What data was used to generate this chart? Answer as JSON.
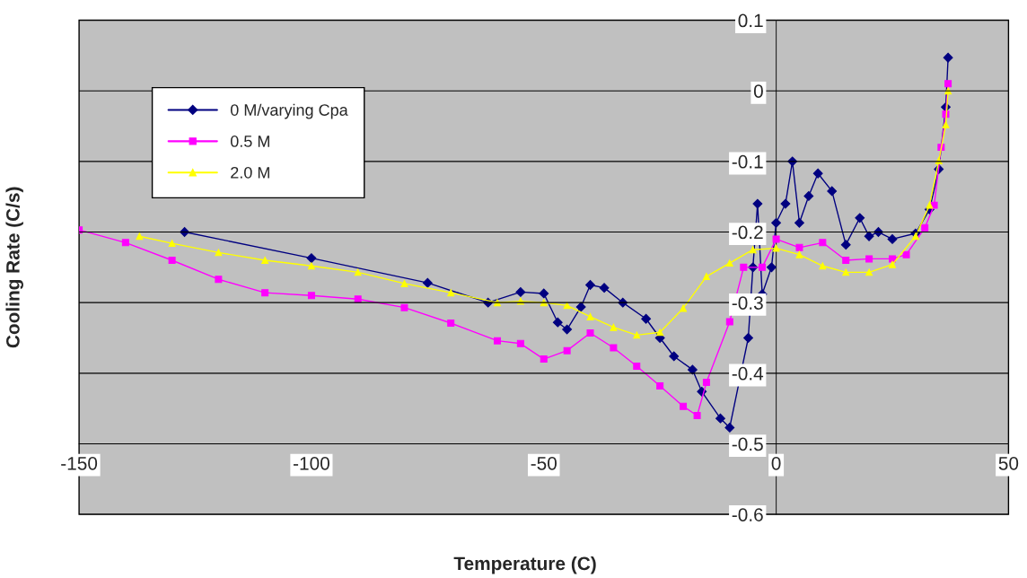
{
  "chart_data": {
    "type": "line",
    "xlabel": "Temperature (C)",
    "ylabel": "Cooling Rate (C/s)",
    "xlim": [
      -150,
      50
    ],
    "xticks": [
      -150,
      -100,
      -50,
      0,
      50
    ],
    "ylim": [
      -0.6,
      0.1
    ],
    "yticks": [
      -0.6,
      -0.5,
      -0.4,
      -0.3,
      -0.2,
      -0.1,
      0,
      0.1
    ],
    "grid": "y",
    "legend": "top left",
    "line_style": "solid",
    "series": [
      {
        "name": "0 M/varying Cpa",
        "color": "#000080",
        "marker": "diamond",
        "x": [
          -127.3,
          -100,
          -75,
          -62,
          -55,
          -50,
          -47,
          -45,
          -42,
          -40,
          -37,
          -33,
          -28,
          -25,
          -22,
          -18,
          -16,
          -12,
          -10,
          -6,
          -5,
          -4,
          -3,
          -1,
          0,
          2,
          3.5,
          5,
          7,
          9,
          12,
          15,
          18,
          20,
          22,
          25,
          30,
          33,
          35,
          36.5,
          37
        ],
        "values": [
          -0.2,
          -0.237,
          -0.272,
          -0.3,
          -0.285,
          -0.287,
          -0.328,
          -0.338,
          -0.306,
          -0.275,
          -0.279,
          -0.3,
          -0.323,
          -0.35,
          -0.376,
          -0.395,
          -0.426,
          -0.464,
          -0.477,
          -0.35,
          -0.25,
          -0.16,
          -0.288,
          -0.25,
          -0.187,
          -0.16,
          -0.1,
          -0.187,
          -0.149,
          -0.117,
          -0.142,
          -0.218,
          -0.18,
          -0.206,
          -0.2,
          -0.21,
          -0.202,
          -0.168,
          -0.111,
          -0.023,
          0.047
        ]
      },
      {
        "name": "0.5 M",
        "color": "#ff00ff",
        "marker": "square",
        "x": [
          -150,
          -140,
          -130,
          -120,
          -110,
          -100,
          -90,
          -80,
          -70,
          -60,
          -55,
          -50,
          -45,
          -40,
          -35,
          -30,
          -25,
          -20,
          -17,
          -15,
          -10,
          -7,
          -3,
          0,
          5,
          10,
          15,
          20,
          25,
          28,
          32,
          34,
          35.5,
          36.5,
          37
        ],
        "values": [
          -0.197,
          -0.215,
          -0.24,
          -0.267,
          -0.286,
          -0.29,
          -0.295,
          -0.307,
          -0.329,
          -0.354,
          -0.358,
          -0.38,
          -0.368,
          -0.343,
          -0.364,
          -0.39,
          -0.418,
          -0.447,
          -0.46,
          -0.413,
          -0.327,
          -0.25,
          -0.25,
          -0.21,
          -0.222,
          -0.215,
          -0.24,
          -0.238,
          -0.238,
          -0.232,
          -0.194,
          -0.162,
          -0.08,
          -0.033,
          0.01
        ]
      },
      {
        "name": "2.0 M",
        "color": "#ffff00",
        "marker": "triangle",
        "x": [
          -137,
          -130,
          -120,
          -110,
          -100,
          -90,
          -80,
          -70,
          -60,
          -55,
          -50,
          -45,
          -40,
          -35,
          -30,
          -25,
          -20,
          -15,
          -10,
          -5,
          0,
          5,
          10,
          15,
          20,
          25,
          30,
          33,
          35,
          36.5,
          37
        ],
        "values": [
          -0.206,
          -0.216,
          -0.229,
          -0.24,
          -0.248,
          -0.257,
          -0.273,
          -0.286,
          -0.3,
          -0.298,
          -0.3,
          -0.304,
          -0.32,
          -0.335,
          -0.346,
          -0.342,
          -0.308,
          -0.263,
          -0.244,
          -0.225,
          -0.223,
          -0.232,
          -0.248,
          -0.257,
          -0.257,
          -0.246,
          -0.206,
          -0.162,
          -0.099,
          -0.048,
          0
        ]
      }
    ]
  }
}
